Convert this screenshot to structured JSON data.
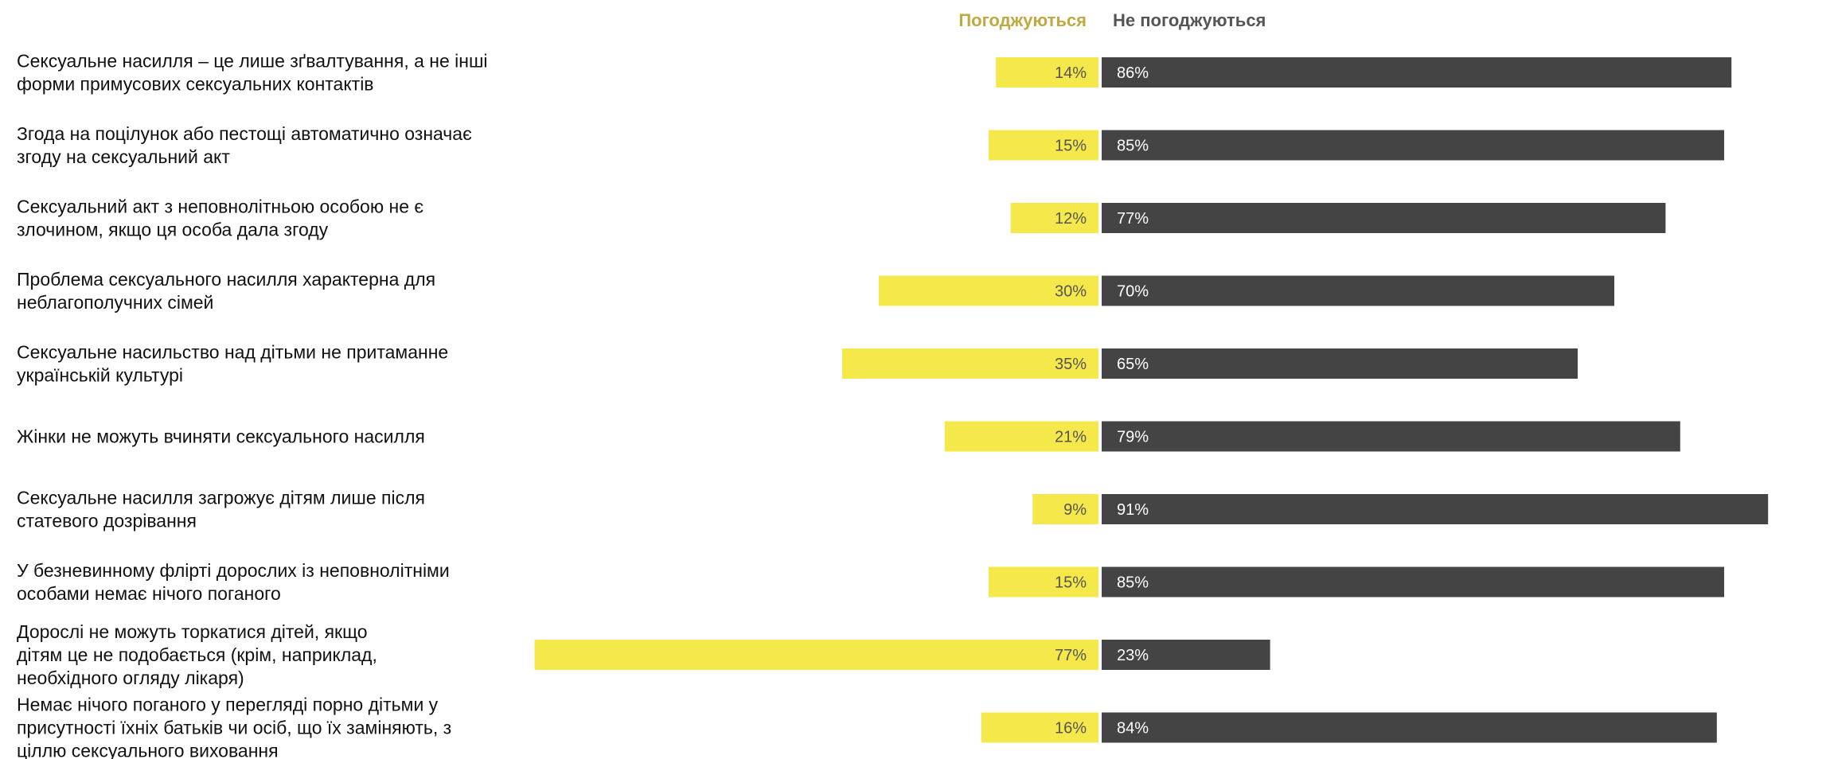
{
  "chart_data": {
    "type": "bar",
    "orientation": "horizontal-diverging",
    "legend_position": "top-center",
    "series": [
      {
        "name": "Погоджуються",
        "values": [
          14,
          15,
          12,
          30,
          35,
          21,
          9,
          15,
          77,
          16
        ]
      },
      {
        "name": "Не погоджуються",
        "values": [
          86,
          85,
          77,
          70,
          65,
          79,
          91,
          85,
          23,
          84
        ]
      }
    ],
    "categories": [
      [
        "Сексуальне насилля – це лише зґвалтування, а не інші",
        "форми примусових сексуальних контактів"
      ],
      [
        "Згода на поцілунок або пестощі автоматично означає",
        "згоду на сексуальний акт"
      ],
      [
        "Сексуальний акт з неповнолітньою особою не є",
        "злочином, якщо ця особа дала згоду"
      ],
      [
        "Проблема сексуального насилля характерна для",
        "неблагополучних сімей"
      ],
      [
        "Сексуальне насильство над дітьми не притаманне",
        "українській культурі"
      ],
      [
        "Жінки не можуть вчиняти сексуального насилля"
      ],
      [
        "Сексуальне насилля загрожує дітям лише після",
        "статевого дозрівання"
      ],
      [
        "У безневинному флірті дорослих із неповнолітніми",
        "особами немає нічого поганого"
      ],
      [
        "Дорослі не можуть торкатися дітей, якщо",
        "дітям це не подобається (крім, наприклад,",
        "необхідного огляду лікаря)"
      ],
      [
        "Немає нічого поганого у перегляді порно дітьми у",
        "присутності їхніх батьків чи осіб, що їх заміняють, з",
        "ціллю сексуального виховання"
      ]
    ],
    "value_suffix": "%",
    "colors": {
      "agree": "#f5e84a",
      "disagree": "#444444",
      "agree_legend": "#bfa940",
      "disagree_legend": "#555555",
      "agree_value_text": "#555555",
      "disagree_value_text": "#ffffff"
    }
  }
}
